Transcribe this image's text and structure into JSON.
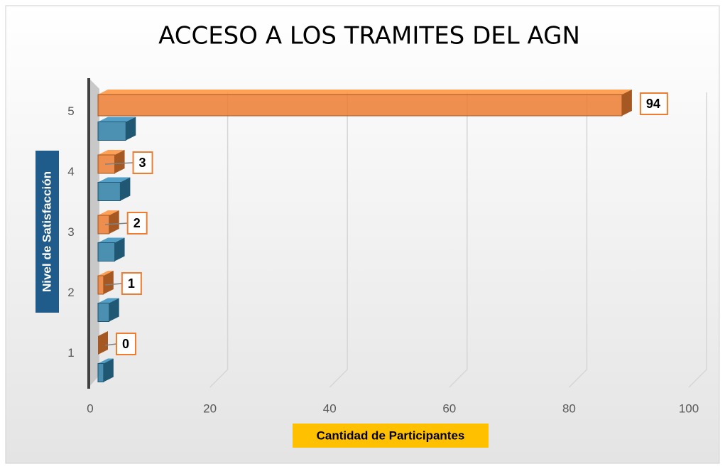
{
  "chart_data": {
    "type": "bar3d_horizontal",
    "title": "ACCESO A LOS TRAMITES DEL AGN",
    "x_label": "Cantidad de Participantes",
    "y_label": "Nivel de Satisfacción",
    "categories": [
      "1",
      "2",
      "3",
      "4",
      "5"
    ],
    "series": [
      {
        "color": "#ed7d31",
        "values": [
          0,
          1,
          2,
          3,
          94
        ],
        "data_labels": true
      },
      {
        "color": "#2e7ea6",
        "values": [
          1,
          2,
          3,
          4,
          5
        ],
        "data_labels": false
      }
    ],
    "xlim": [
      0,
      100
    ],
    "xticks": [
      0,
      20,
      40,
      60,
      80,
      100
    ],
    "grid": true
  }
}
